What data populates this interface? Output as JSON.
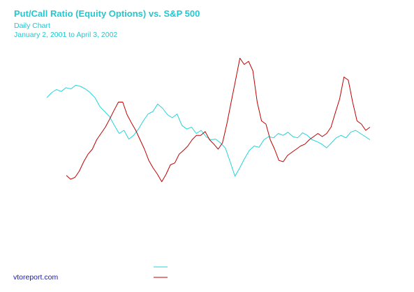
{
  "header": {
    "title": "Put/Call Ratio (Equity Options) vs. S&P 500",
    "subtitle": "Daily Chart",
    "date_range": "January 2, 2001 to April 3, 2002"
  },
  "footer": {
    "source": "vtoreport.com"
  },
  "colors": {
    "putcall": "#22d4d8",
    "sp500": "#c00000",
    "text_accent": "#22c8d0",
    "footer_text": "#1a1aa6"
  },
  "chart_data": {
    "type": "line",
    "title": "Put/Call Ratio (Equity Options) vs. S&P 500",
    "subtitle": "Daily Chart",
    "x_range": [
      "2001-01-02",
      "2002-04-03"
    ],
    "axes_labels_shown": false,
    "grid": false,
    "series": [
      {
        "color": "#22d4d8",
        "values": [
          0.62,
          0.7,
          0.75,
          0.72,
          0.78,
          0.76,
          0.82,
          0.8,
          0.76,
          0.7,
          0.62,
          0.48,
          0.4,
          0.32,
          0.18,
          0.05,
          0.1,
          -0.04,
          0.02,
          0.12,
          0.25,
          0.36,
          0.4,
          0.52,
          0.45,
          0.35,
          0.3,
          0.36,
          0.18,
          0.12,
          0.15,
          0.05,
          0.1,
          0.0,
          -0.05,
          -0.04,
          -0.1,
          -0.18,
          -0.4,
          -0.63,
          -0.5,
          -0.35,
          -0.22,
          -0.15,
          -0.17,
          -0.05,
          0.0,
          -0.02,
          0.05,
          0.02,
          0.07,
          0.0,
          -0.02,
          0.06,
          0.02,
          -0.05,
          -0.08,
          -0.12,
          -0.18,
          -0.1,
          -0.02,
          0.02,
          -0.02,
          0.07,
          0.1,
          0.05,
          0.0,
          -0.05
        ]
      },
      {
        "color": "#c00000",
        "values": [
          -0.62,
          -0.68,
          -0.65,
          -0.55,
          -0.4,
          -0.28,
          -0.2,
          -0.05,
          0.05,
          0.15,
          0.28,
          0.42,
          0.55,
          0.55,
          0.35,
          0.22,
          0.1,
          -0.05,
          -0.2,
          -0.38,
          -0.5,
          -0.6,
          -0.72,
          -0.6,
          -0.45,
          -0.42,
          -0.28,
          -0.22,
          -0.15,
          -0.05,
          0.02,
          0.02,
          0.08,
          -0.05,
          -0.12,
          -0.2,
          -0.1,
          0.2,
          0.55,
          0.9,
          1.25,
          1.15,
          1.2,
          1.05,
          0.55,
          0.25,
          0.2,
          -0.05,
          -0.2,
          -0.38,
          -0.4,
          -0.3,
          -0.25,
          -0.2,
          -0.15,
          -0.12,
          -0.05,
          0.0,
          0.05,
          0.0,
          0.05,
          0.15,
          0.38,
          0.6,
          0.95,
          0.9,
          0.55,
          0.25,
          0.2,
          0.1,
          0.15
        ]
      }
    ]
  }
}
